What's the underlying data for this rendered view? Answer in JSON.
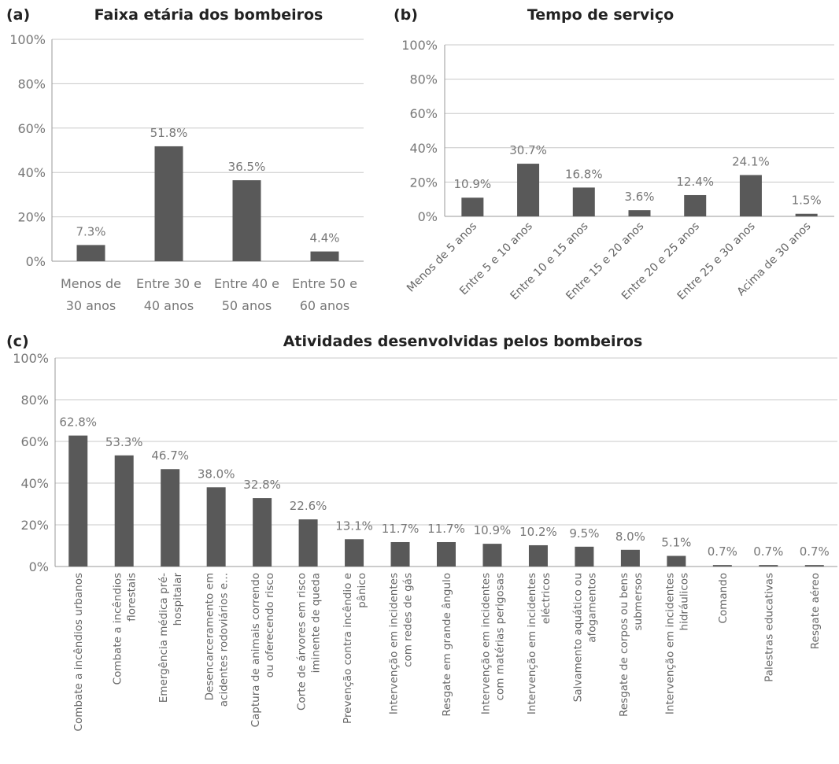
{
  "chart_data": [
    {
      "panel": "(a)",
      "type": "bar",
      "title": "Faixa etária dos bombeiros",
      "categories": [
        [
          "Menos de",
          "30 anos"
        ],
        [
          "Entre 30 e",
          "40 anos"
        ],
        [
          "Entre 40 e",
          "50 anos"
        ],
        [
          "Entre 50 e",
          "60 anos"
        ]
      ],
      "values": [
        7.3,
        51.8,
        36.5,
        4.4
      ],
      "data_labels": [
        "7.3%",
        "51.8%",
        "36.5%",
        "4.4%"
      ],
      "yticks": [
        "0%",
        "20%",
        "40%",
        "60%",
        "80%",
        "100%"
      ],
      "ylim": [
        0,
        100
      ],
      "grid": true
    },
    {
      "panel": "(b)",
      "type": "bar",
      "title": "Tempo de serviço",
      "categories": [
        [
          "Menos de 5 anos"
        ],
        [
          "Entre 5 e 10 anos"
        ],
        [
          "Entre 10 e 15 anos"
        ],
        [
          "Entre 15 e 20 anos"
        ],
        [
          "Entre 20 e 25 anos"
        ],
        [
          "Entre 25 e 30 anos"
        ],
        [
          "Acima de 30 anos"
        ]
      ],
      "values": [
        10.9,
        30.7,
        16.8,
        3.6,
        12.4,
        24.1,
        1.5
      ],
      "data_labels": [
        "10.9%",
        "30.7%",
        "16.8%",
        "3.6%",
        "12.4%",
        "24.1%",
        "1.5%"
      ],
      "yticks": [
        "0%",
        "20%",
        "40%",
        "60%",
        "80%",
        "100%"
      ],
      "ylim": [
        0,
        100
      ],
      "grid": true
    },
    {
      "panel": "(c)",
      "type": "bar",
      "title": "Atividades desenvolvidas pelos bombeiros",
      "categories": [
        [
          "Combate a incêndios urbanos"
        ],
        [
          "Combate a incêndios",
          "florestais"
        ],
        [
          "Emergência médica pré-",
          "hospitalar"
        ],
        [
          "Desencarceramento em",
          "acidentes rodoviários e..."
        ],
        [
          "Captura de animais correndo",
          "ou oferecendo risco"
        ],
        [
          "Corte de árvores em risco",
          "iminente de queda"
        ],
        [
          "Prevenção contra incêndio e",
          "pânico"
        ],
        [
          "Intervenção em incidentes",
          "com redes de gás"
        ],
        [
          "Resgate em grande ângulo"
        ],
        [
          "Intervenção em incidentes",
          "com matérias perigosas"
        ],
        [
          "Intervenção em incidentes",
          "eléctricos"
        ],
        [
          "Salvamento aquático ou",
          "afogamentos"
        ],
        [
          "Resgate de corpos ou bens",
          "submersos"
        ],
        [
          "Intervenção em incidentes",
          "hidráulicos"
        ],
        [
          "Comando"
        ],
        [
          "Palestras educativas"
        ],
        [
          "Resgate aéreo"
        ]
      ],
      "values": [
        62.8,
        53.3,
        46.7,
        38.0,
        32.8,
        22.6,
        13.1,
        11.7,
        11.7,
        10.9,
        10.2,
        9.5,
        8.0,
        5.1,
        0.7,
        0.7,
        0.7
      ],
      "data_labels": [
        "62.8%",
        "53.3%",
        "46.7%",
        "38.0%",
        "32.8%",
        "22.6%",
        "13.1%",
        "11.7%",
        "11.7%",
        "10.9%",
        "10.2%",
        "9.5%",
        "8.0%",
        "5.1%",
        "0.7%",
        "0.7%",
        "0.7%"
      ],
      "yticks": [
        "0%",
        "20%",
        "40%",
        "60%",
        "80%",
        "100%"
      ],
      "ylim": [
        0,
        100
      ],
      "grid": true
    }
  ]
}
